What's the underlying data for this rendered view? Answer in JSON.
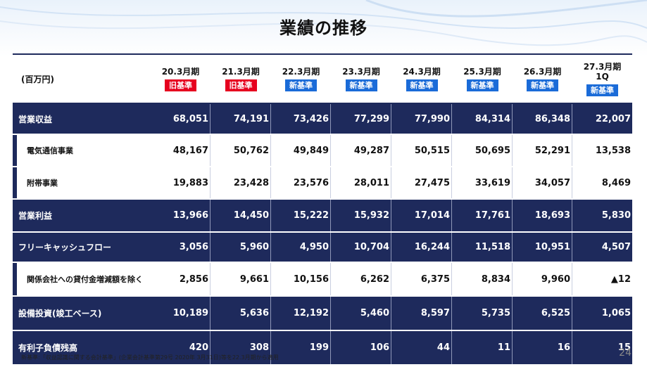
{
  "title": "業績の推移",
  "table": {
    "unit_label": "(百万円)",
    "columns": [
      {
        "period": "20.3月期",
        "period2": "",
        "badge": "旧基準",
        "badge_type": "old"
      },
      {
        "period": "21.3月期",
        "period2": "",
        "badge": "旧基準",
        "badge_type": "old"
      },
      {
        "period": "22.3月期",
        "period2": "",
        "badge": "新基準",
        "badge_type": "new"
      },
      {
        "period": "23.3月期",
        "period2": "",
        "badge": "新基準",
        "badge_type": "new"
      },
      {
        "period": "24.3月期",
        "period2": "",
        "badge": "新基準",
        "badge_type": "new"
      },
      {
        "period": "25.3月期",
        "period2": "",
        "badge": "新基準",
        "badge_type": "new"
      },
      {
        "period": "26.3月期",
        "period2": "",
        "badge": "新基準",
        "badge_type": "new"
      },
      {
        "period": "27.3月期",
        "period2": "1Q",
        "badge": "新基準",
        "badge_type": "new"
      }
    ],
    "rows": [
      {
        "label": "営業収益",
        "style": "dark",
        "values": [
          "68,051",
          "74,191",
          "73,426",
          "77,299",
          "77,990",
          "84,314",
          "86,348",
          "22,007"
        ]
      },
      {
        "label": "電気通信事業",
        "style": "light",
        "values": [
          "48,167",
          "50,762",
          "49,849",
          "49,287",
          "50,515",
          "50,695",
          "52,291",
          "13,538"
        ]
      },
      {
        "label": "附帯事業",
        "style": "light",
        "values": [
          "19,883",
          "23,428",
          "23,576",
          "28,011",
          "27,475",
          "33,619",
          "34,057",
          "8,469"
        ]
      },
      {
        "label": "営業利益",
        "style": "dark",
        "values": [
          "13,966",
          "14,450",
          "15,222",
          "15,932",
          "17,014",
          "17,761",
          "18,693",
          "5,830"
        ]
      },
      {
        "label": "フリーキャッシュフロー",
        "style": "dark",
        "values": [
          "3,056",
          "5,960",
          "4,950",
          "10,704",
          "16,244",
          "11,518",
          "10,951",
          "4,507"
        ]
      },
      {
        "label": "関係会社への貸付金増減額を除く",
        "style": "light",
        "values": [
          "2,856",
          "9,661",
          "10,156",
          "6,262",
          "6,375",
          "8,834",
          "9,960",
          "▲12"
        ]
      },
      {
        "label": "設備投資(竣工ベース)",
        "style": "dark",
        "values": [
          "10,189",
          "5,636",
          "12,192",
          "5,460",
          "8,597",
          "5,735",
          "6,525",
          "1,065"
        ]
      },
      {
        "label": "有利子負債残高",
        "style": "dark",
        "values": [
          "420",
          "308",
          "199",
          "106",
          "44",
          "11",
          "16",
          "15"
        ]
      }
    ]
  },
  "footnote": "新基準:「収益認識に関する会計基準」(企業会計基準第29号 2020年 3月31日)等を22.3月期から適用",
  "page_number": "24",
  "colors": {
    "navy": "#1e2a5c",
    "old_badge": "#e6001f",
    "new_badge": "#1a6bd8"
  }
}
